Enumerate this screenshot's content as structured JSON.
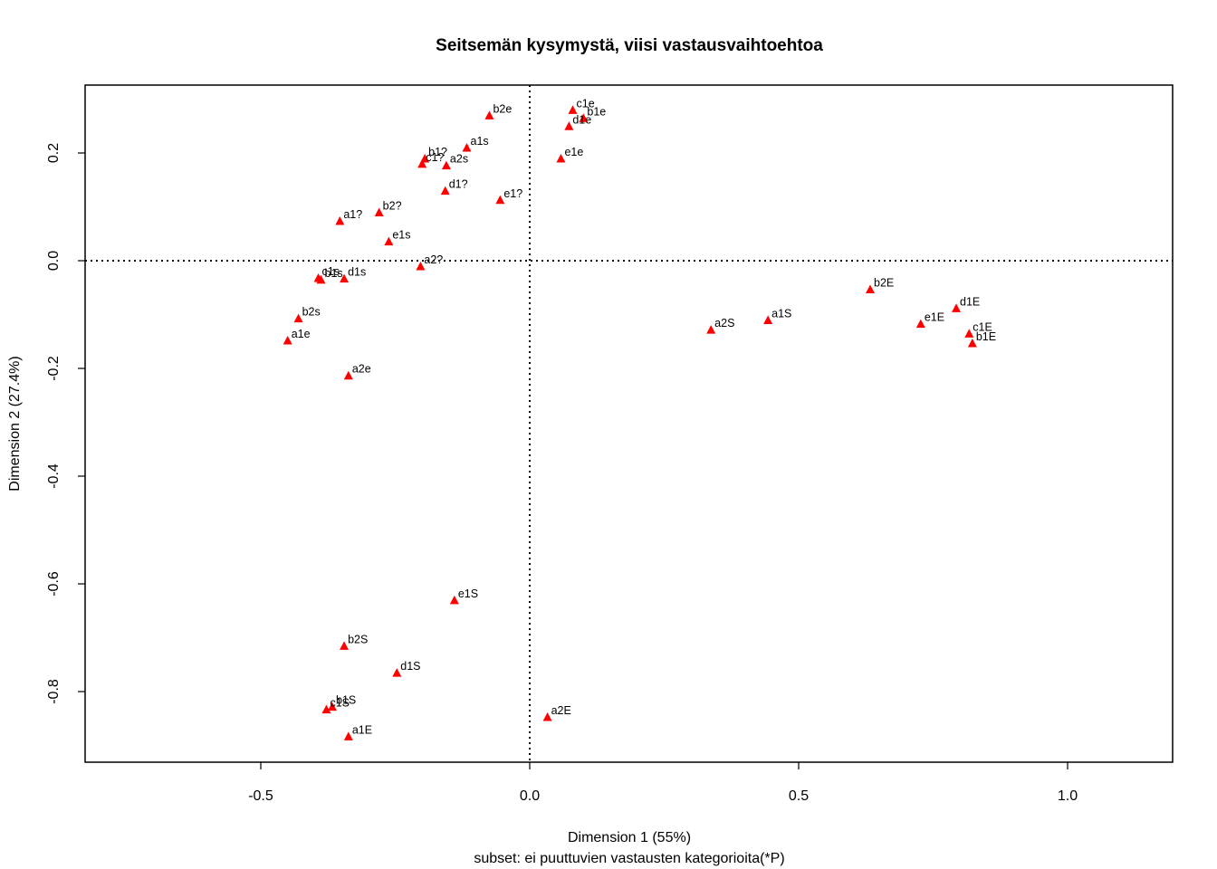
{
  "chart_data": {
    "type": "scatter",
    "title": "Seitsemän kysymystä, viisi vastausvaihtoehtoa",
    "xlabel": "Dimension 1 (55%)",
    "xsublabel": "subset: ei puuttuvien vastausten kategorioita(*P)",
    "ylabel": "Dimension 2 (27.4%)",
    "xlim": [
      -0.83,
      1.2
    ],
    "ylim": [
      -0.93,
      0.33
    ],
    "xticks": [
      -0.5,
      0.0,
      0.5,
      1.0
    ],
    "xtick_labels": [
      "-0.5",
      "0.0",
      "0.5",
      "1.0"
    ],
    "yticks": [
      -0.8,
      -0.6,
      -0.4,
      -0.2,
      0.0,
      0.2
    ],
    "ytick_labels": [
      "-0.8",
      "-0.6",
      "-0.4",
      "-0.2",
      "0.0",
      "0.2"
    ],
    "reference_lines": {
      "x": 0.0,
      "y": 0.0,
      "style": "dotted"
    },
    "marker": "triangle",
    "marker_color": "#ff0000",
    "points": [
      {
        "label": "c1e",
        "x": 0.08,
        "y": 0.28
      },
      {
        "label": "b1e",
        "x": 0.1,
        "y": 0.265
      },
      {
        "label": "d1e",
        "x": 0.073,
        "y": 0.25
      },
      {
        "label": "b2e",
        "x": -0.075,
        "y": 0.27
      },
      {
        "label": "e1e",
        "x": 0.058,
        "y": 0.19
      },
      {
        "label": "a1s",
        "x": -0.117,
        "y": 0.21
      },
      {
        "label": "b1?",
        "x": -0.195,
        "y": 0.19
      },
      {
        "label": "c1?",
        "x": -0.2,
        "y": 0.18
      },
      {
        "label": "a2s",
        "x": -0.155,
        "y": 0.177
      },
      {
        "label": "d1?",
        "x": -0.157,
        "y": 0.13
      },
      {
        "label": "e1?",
        "x": -0.055,
        "y": 0.113
      },
      {
        "label": "a1?",
        "x": -0.353,
        "y": 0.074
      },
      {
        "label": "b2?",
        "x": -0.28,
        "y": 0.09
      },
      {
        "label": "e1s",
        "x": -0.262,
        "y": 0.036
      },
      {
        "label": "a2?",
        "x": -0.203,
        "y": -0.01
      },
      {
        "label": "c1s",
        "x": -0.393,
        "y": -0.032
      },
      {
        "label": "b1s",
        "x": -0.388,
        "y": -0.035
      },
      {
        "label": "d1s",
        "x": -0.345,
        "y": -0.033
      },
      {
        "label": "b2s",
        "x": -0.43,
        "y": -0.107
      },
      {
        "label": "a1e",
        "x": -0.45,
        "y": -0.148
      },
      {
        "label": "a2e",
        "x": -0.337,
        "y": -0.213
      },
      {
        "label": "b2E",
        "x": 0.633,
        "y": -0.053
      },
      {
        "label": "d1E",
        "x": 0.793,
        "y": -0.088
      },
      {
        "label": "a1S",
        "x": 0.443,
        "y": -0.11
      },
      {
        "label": "e1E",
        "x": 0.727,
        "y": -0.117
      },
      {
        "label": "a2S",
        "x": 0.337,
        "y": -0.128
      },
      {
        "label": "c1E",
        "x": 0.817,
        "y": -0.135
      },
      {
        "label": "b1E",
        "x": 0.823,
        "y": -0.153
      },
      {
        "label": "e1S",
        "x": -0.14,
        "y": -0.63
      },
      {
        "label": "b2S",
        "x": -0.345,
        "y": -0.715
      },
      {
        "label": "d1S",
        "x": -0.247,
        "y": -0.765
      },
      {
        "label": "b1S",
        "x": -0.367,
        "y": -0.828
      },
      {
        "label": "c1S",
        "x": -0.378,
        "y": -0.833
      },
      {
        "label": "a2E",
        "x": 0.033,
        "y": -0.847
      },
      {
        "label": "a1E",
        "x": -0.337,
        "y": -0.883
      }
    ]
  }
}
